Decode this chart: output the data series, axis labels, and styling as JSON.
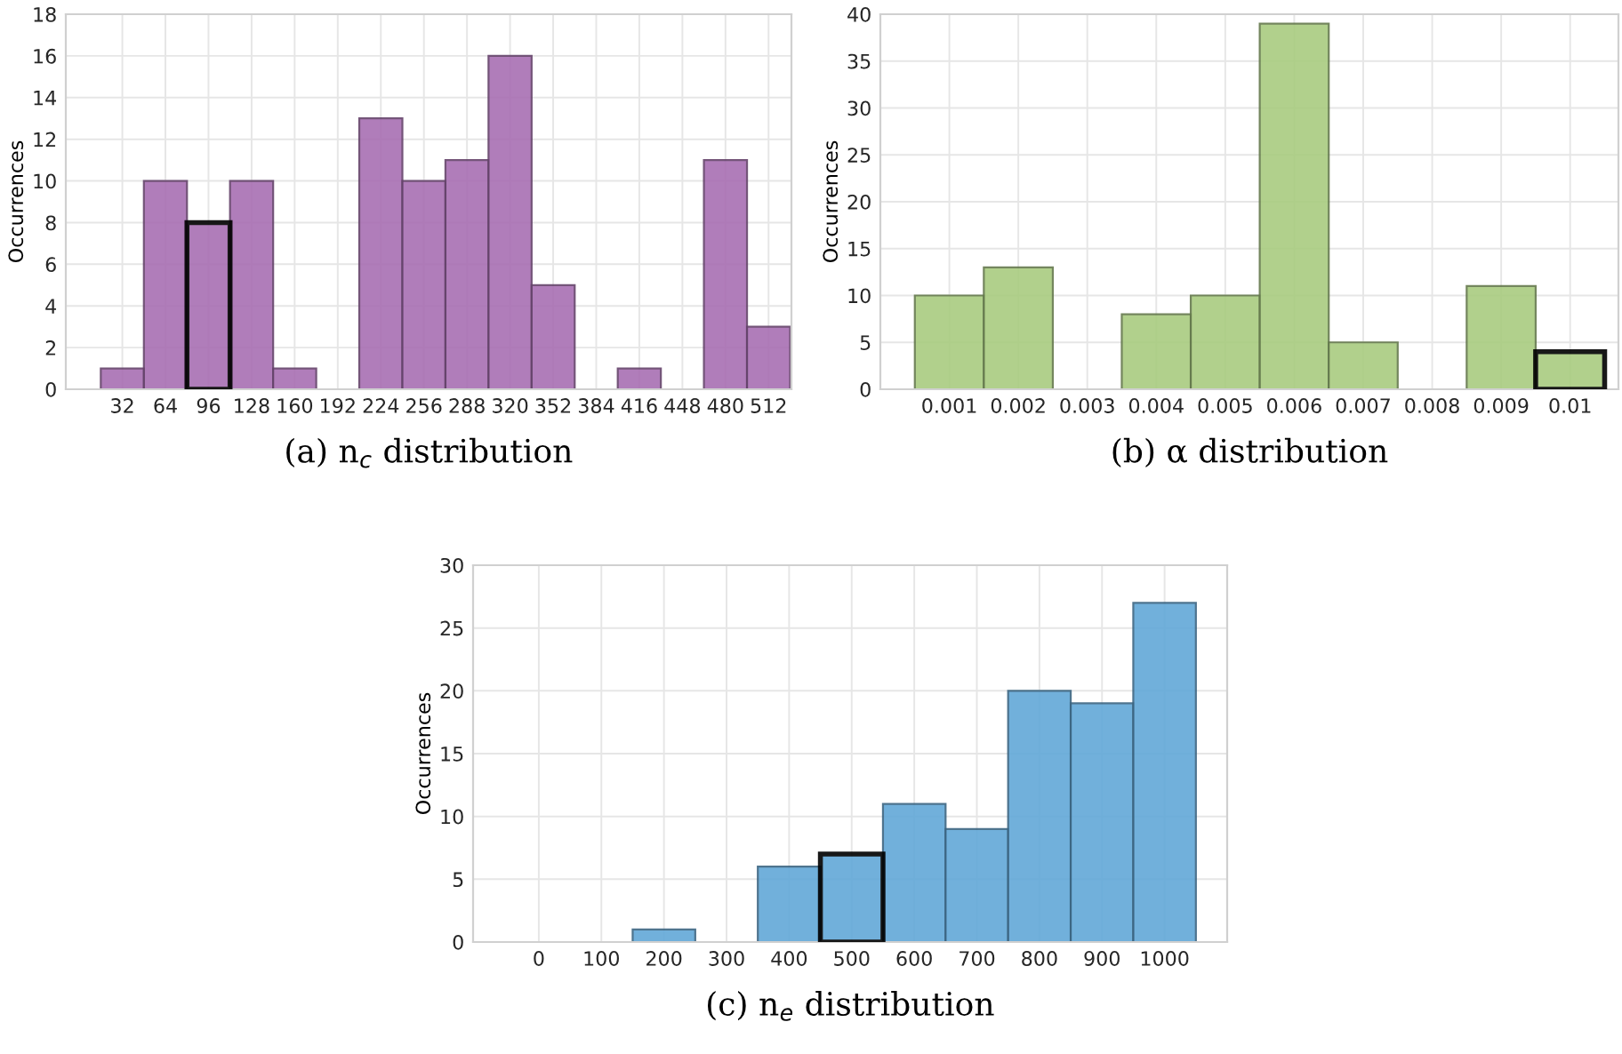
{
  "chart_data": [
    {
      "type": "histogram",
      "title": "(a) n$_{c}$ distribution",
      "ylabel": "Occurrences",
      "bins": [
        16,
        48,
        80,
        112,
        144,
        176,
        208,
        240,
        272,
        304,
        336,
        368,
        400,
        432,
        464,
        496,
        528
      ],
      "series": [
        {
          "color": "#a86fb3",
          "values": [
            1,
            10,
            null,
            10,
            1,
            0,
            13,
            10,
            11,
            16,
            5,
            0,
            1,
            0,
            11,
            3
          ]
        },
        {
          "color": "#a86fb3",
          "values": [
            null,
            null,
            8,
            null,
            null,
            null,
            null,
            null,
            null,
            null,
            null,
            null,
            null,
            null,
            null,
            null
          ]
        }
      ],
      "xlim": [
        -10,
        529
      ],
      "xticks": [
        32,
        64,
        96,
        128,
        160,
        192,
        224,
        256,
        288,
        320,
        352,
        384,
        416,
        448,
        480,
        512
      ],
      "ylim": [
        0,
        18
      ],
      "yticks": [
        0,
        2,
        4,
        6,
        8,
        10,
        12,
        14,
        16,
        18
      ],
      "grid": true
    },
    {
      "type": "histogram",
      "title": "(b) α distribution",
      "ylabel": "Occurrences",
      "bins": [
        0.0005,
        0.0015,
        0.0025,
        0.0035,
        0.0045,
        0.0055,
        0.0065,
        0.0075,
        0.0085,
        0.0095,
        0.0105
      ],
      "series": [
        {
          "color": "#a9cc80",
          "values": [
            10,
            13,
            0,
            8,
            10,
            39,
            5,
            0,
            11,
            null
          ]
        },
        {
          "color": "#a9cc80",
          "values": [
            null,
            null,
            null,
            null,
            null,
            null,
            null,
            null,
            null,
            4
          ]
        }
      ],
      "xlim": [
        0,
        0.0107
      ],
      "xticks": [
        0.001,
        0.002,
        0.003,
        0.004,
        0.005,
        0.006,
        0.007,
        0.008,
        0.009,
        0.01
      ],
      "ylim": [
        0,
        40
      ],
      "yticks": [
        0,
        5,
        10,
        15,
        20,
        25,
        30,
        35,
        40
      ],
      "grid": true
    },
    {
      "type": "histogram",
      "title": "(c) n$_{e}$ distribution",
      "ylabel": "Occurrences",
      "bins": [
        150,
        250,
        350,
        450,
        550,
        650,
        750,
        850,
        950,
        1050
      ],
      "series": [
        {
          "color": "#62a8d8",
          "values": [
            1,
            0,
            6,
            null,
            11,
            9,
            20,
            19,
            27
          ]
        },
        {
          "color": "#62a8d8",
          "values": [
            null,
            null,
            null,
            7,
            null,
            null,
            null,
            null,
            null
          ]
        }
      ],
      "xlim": [
        -105,
        1100
      ],
      "xticks": [
        0,
        100,
        200,
        300,
        400,
        500,
        600,
        700,
        800,
        900,
        1000
      ],
      "ylim": [
        0,
        30
      ],
      "yticks": [
        0,
        5,
        10,
        15,
        20,
        25,
        30
      ],
      "grid": true
    }
  ]
}
